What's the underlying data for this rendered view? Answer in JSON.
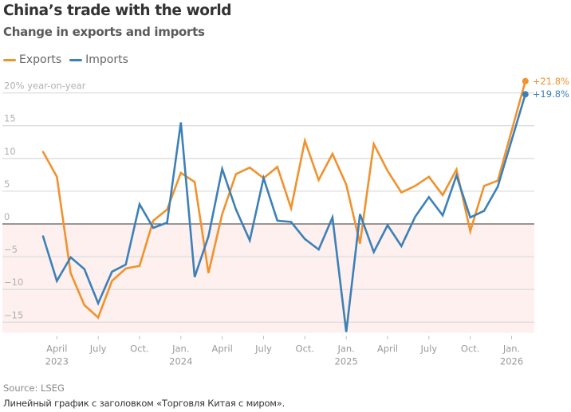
{
  "header": {
    "title": "China’s trade with the world",
    "subtitle": "Change in exports and imports"
  },
  "legend": [
    {
      "label": "Exports",
      "color": "#f0922e"
    },
    {
      "label": "Imports",
      "color": "#3d80b8"
    }
  ],
  "footer": {
    "source": "Source: LSEG",
    "caption": "Линейный график с заголовком «Торговля Китая с миром»."
  },
  "chart_data": {
    "type": "line",
    "title": "China’s trade with the world",
    "subtitle": "Change in exports and imports",
    "xlabel": "",
    "ylabel": "% year-on-year",
    "ylim": [
      -16.5,
      22
    ],
    "yticks": [
      {
        "value": 20,
        "label": "20% year-on-year"
      },
      {
        "value": 15,
        "label": "15"
      },
      {
        "value": 10,
        "label": "10"
      },
      {
        "value": 5,
        "label": "5"
      },
      {
        "value": 0,
        "label": "0"
      },
      {
        "value": -5,
        "label": "−5"
      },
      {
        "value": -10,
        "label": "−10"
      },
      {
        "value": -15,
        "label": "−15"
      }
    ],
    "xticks": [
      {
        "month": "2023-04",
        "label": "April",
        "sublabel": "2023"
      },
      {
        "month": "2023-07",
        "label": "July",
        "sublabel": ""
      },
      {
        "month": "2023-10",
        "label": "Oct.",
        "sublabel": ""
      },
      {
        "month": "2024-01",
        "label": "Jan.",
        "sublabel": "2024"
      },
      {
        "month": "2024-04",
        "label": "April",
        "sublabel": ""
      },
      {
        "month": "2024-07",
        "label": "July",
        "sublabel": ""
      },
      {
        "month": "2024-10",
        "label": "Oct.",
        "sublabel": ""
      },
      {
        "month": "2025-01",
        "label": "Jan.",
        "sublabel": "2025"
      },
      {
        "month": "2025-04",
        "label": "April",
        "sublabel": ""
      },
      {
        "month": "2025-07",
        "label": "July",
        "sublabel": ""
      },
      {
        "month": "2025-10",
        "label": "Oct.",
        "sublabel": ""
      },
      {
        "month": "2026-01",
        "label": "Jan.",
        "sublabel": "2026"
      }
    ],
    "grid": true,
    "negative_region_shaded": true,
    "legend_position": "top-left",
    "x": [
      "2023-03",
      "2023-04",
      "2023-05",
      "2023-06",
      "2023-07",
      "2023-08",
      "2023-09",
      "2023-10",
      "2023-11",
      "2023-12",
      "2024-01",
      "2024-02",
      "2024-03",
      "2024-04",
      "2024-05",
      "2024-06",
      "2024-07",
      "2024-08",
      "2024-09",
      "2024-10",
      "2024-11",
      "2024-12",
      "2025-01",
      "2025-02",
      "2025-03",
      "2025-04",
      "2025-05",
      "2025-06",
      "2025-07",
      "2025-08",
      "2025-09",
      "2025-10",
      "2025-11",
      "2025-12",
      "2026-01",
      "2026-02"
    ],
    "series": [
      {
        "name": "Exports",
        "color": "#f0922e",
        "values": [
          11.0,
          7.2,
          -7.5,
          -12.4,
          -14.3,
          -8.7,
          -6.8,
          -6.4,
          0.5,
          2.2,
          7.8,
          6.4,
          -7.5,
          1.5,
          7.6,
          8.6,
          7.0,
          8.7,
          2.4,
          12.7,
          6.7,
          10.7,
          6.0,
          -3.0,
          12.2,
          8.1,
          4.8,
          5.8,
          7.2,
          4.4,
          8.3,
          -1.1,
          5.8,
          6.6,
          null,
          21.8
        ],
        "end_label": "+21.8%"
      },
      {
        "name": "Imports",
        "color": "#3d80b8",
        "values": [
          -1.9,
          -8.7,
          -5.1,
          -6.9,
          -12.1,
          -7.3,
          -6.2,
          3.0,
          -0.6,
          0.2,
          15.5,
          -8.1,
          -1.9,
          8.4,
          2.2,
          -2.5,
          7.0,
          0.5,
          0.3,
          -2.3,
          -3.9,
          1.0,
          -16.5,
          1.5,
          -4.3,
          -0.2,
          -3.4,
          1.1,
          4.1,
          1.3,
          7.4,
          1.0,
          2.0,
          5.7,
          null,
          19.8
        ],
        "end_label": "+19.8%"
      }
    ]
  }
}
